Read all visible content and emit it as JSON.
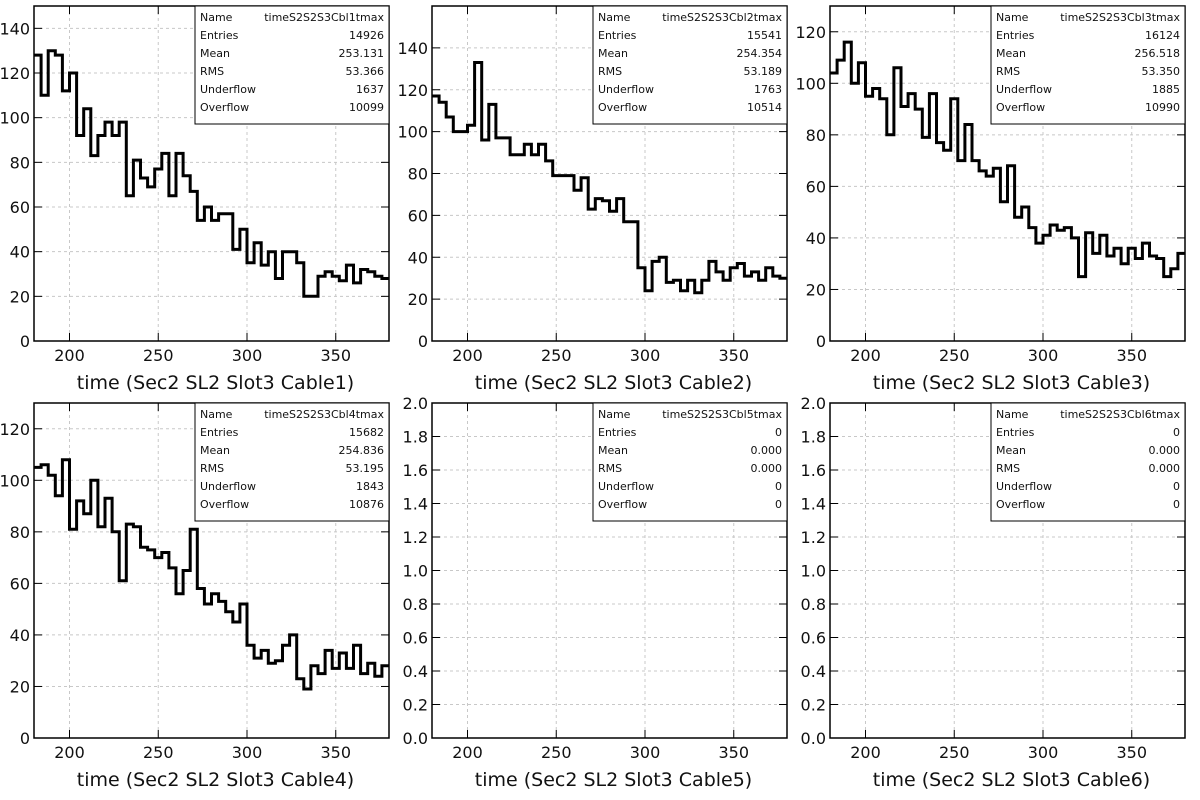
{
  "chart_data": [
    {
      "type": "histogram",
      "xlabel": "time (Sec2 SL2 Slot3 Cable1)",
      "xlim": [
        180,
        380
      ],
      "ylim": [
        0,
        150
      ],
      "xticks": [
        200,
        250,
        300,
        350
      ],
      "yticks": [
        0,
        20,
        40,
        60,
        80,
        100,
        120,
        140
      ],
      "ytick_decimals": 0,
      "grid": true,
      "stats": {
        "Name": "timeS2S2S3Cbl1tmax",
        "Entries": "14926",
        "Mean": "253.131",
        "RMS": "53.366",
        "Underflow": "1637",
        "Overflow": "10099"
      },
      "bin_width": 4,
      "values": [
        128,
        110,
        130,
        128,
        112,
        120,
        92,
        104,
        83,
        92,
        98,
        92,
        98,
        65,
        81,
        73,
        69,
        77,
        84,
        65,
        84,
        74,
        67,
        54,
        60,
        54,
        57,
        57,
        41,
        50,
        35,
        44,
        34,
        40,
        28,
        40,
        40,
        35,
        20,
        20,
        29,
        31,
        29,
        27,
        34,
        26,
        32,
        31,
        29,
        28
      ]
    },
    {
      "type": "histogram",
      "xlabel": "time (Sec2 SL2 Slot3 Cable2)",
      "xlim": [
        180,
        380
      ],
      "ylim": [
        0,
        160
      ],
      "xticks": [
        200,
        250,
        300,
        350
      ],
      "yticks": [
        0,
        20,
        40,
        60,
        80,
        100,
        120,
        140
      ],
      "ytick_decimals": 0,
      "grid": true,
      "stats": {
        "Name": "timeS2S2S3Cbl2tmax",
        "Entries": "15541",
        "Mean": "254.354",
        "RMS": "53.189",
        "Underflow": "1763",
        "Overflow": "10514"
      },
      "bin_width": 4,
      "values": [
        117,
        114,
        107,
        100,
        100,
        103,
        133,
        96,
        113,
        97,
        97,
        89,
        89,
        94,
        89,
        94,
        86,
        79,
        79,
        79,
        72,
        78,
        63,
        68,
        67,
        62,
        68,
        57,
        57,
        35,
        24,
        38,
        40,
        28,
        29,
        24,
        29,
        23,
        29,
        38,
        33,
        29,
        35,
        37,
        31,
        33,
        29,
        35,
        31,
        30
      ]
    },
    {
      "type": "histogram",
      "xlabel": "time (Sec2 SL2 Slot3 Cable3)",
      "xlim": [
        180,
        380
      ],
      "ylim": [
        0,
        130
      ],
      "xticks": [
        200,
        250,
        300,
        350
      ],
      "yticks": [
        0,
        20,
        40,
        60,
        80,
        100,
        120
      ],
      "ytick_decimals": 0,
      "grid": true,
      "stats": {
        "Name": "timeS2S2S3Cbl3tmax",
        "Entries": "16124",
        "Mean": "256.518",
        "RMS": "53.350",
        "Underflow": "1885",
        "Overflow": "10990"
      },
      "bin_width": 4,
      "values": [
        104,
        109,
        116,
        100,
        108,
        95,
        98,
        94,
        80,
        106,
        91,
        96,
        90,
        79,
        96,
        77,
        74,
        94,
        70,
        84,
        70,
        66,
        64,
        67,
        54,
        68,
        48,
        52,
        44,
        38,
        41,
        45,
        43,
        44,
        40,
        25,
        42,
        34,
        41,
        33,
        36,
        30,
        36,
        32,
        38,
        33,
        32,
        25,
        28,
        34
      ]
    },
    {
      "type": "histogram",
      "xlabel": "time (Sec2 SL2 Slot3 Cable4)",
      "xlim": [
        180,
        380
      ],
      "ylim": [
        0,
        130
      ],
      "xticks": [
        200,
        250,
        300,
        350
      ],
      "yticks": [
        0,
        20,
        40,
        60,
        80,
        100,
        120
      ],
      "ytick_decimals": 0,
      "grid": true,
      "stats": {
        "Name": "timeS2S2S3Cbl4tmax",
        "Entries": "15682",
        "Mean": "254.836",
        "RMS": "53.195",
        "Underflow": "1843",
        "Overflow": "10876"
      },
      "bin_width": 4,
      "values": [
        105,
        106,
        102,
        94,
        108,
        81,
        92,
        87,
        100,
        82,
        93,
        80,
        61,
        83,
        82,
        74,
        73,
        70,
        72,
        66,
        56,
        65,
        81,
        58,
        52,
        56,
        53,
        49,
        45,
        52,
        36,
        31,
        34,
        29,
        30,
        36,
        40,
        23,
        19,
        28,
        25,
        34,
        27,
        33,
        27,
        36,
        25,
        29,
        24,
        28
      ]
    },
    {
      "type": "histogram",
      "xlabel": "time (Sec2 SL2 Slot3 Cable5)",
      "xlim": [
        180,
        380
      ],
      "ylim": [
        0,
        2.0
      ],
      "xticks": [
        200,
        250,
        300,
        350
      ],
      "yticks": [
        0,
        0.2,
        0.4,
        0.6,
        0.8,
        1.0,
        1.2,
        1.4,
        1.6,
        1.8,
        2.0
      ],
      "ytick_decimals": 1,
      "grid": true,
      "stats": {
        "Name": "timeS2S2S3Cbl5tmax",
        "Entries": "0",
        "Mean": "0.000",
        "RMS": "0.000",
        "Underflow": "0",
        "Overflow": "0"
      },
      "bin_width": 4,
      "values": []
    },
    {
      "type": "histogram",
      "xlabel": "time (Sec2 SL2 Slot3 Cable6)",
      "xlim": [
        180,
        380
      ],
      "ylim": [
        0,
        2.0
      ],
      "xticks": [
        200,
        250,
        300,
        350
      ],
      "yticks": [
        0,
        0.2,
        0.4,
        0.6,
        0.8,
        1.0,
        1.2,
        1.4,
        1.6,
        1.8,
        2.0
      ],
      "ytick_decimals": 1,
      "grid": true,
      "stats": {
        "Name": "timeS2S2S3Cbl6tmax",
        "Entries": "0",
        "Mean": "0.000",
        "RMS": "0.000",
        "Underflow": "0",
        "Overflow": "0"
      },
      "bin_width": 4,
      "values": []
    }
  ]
}
